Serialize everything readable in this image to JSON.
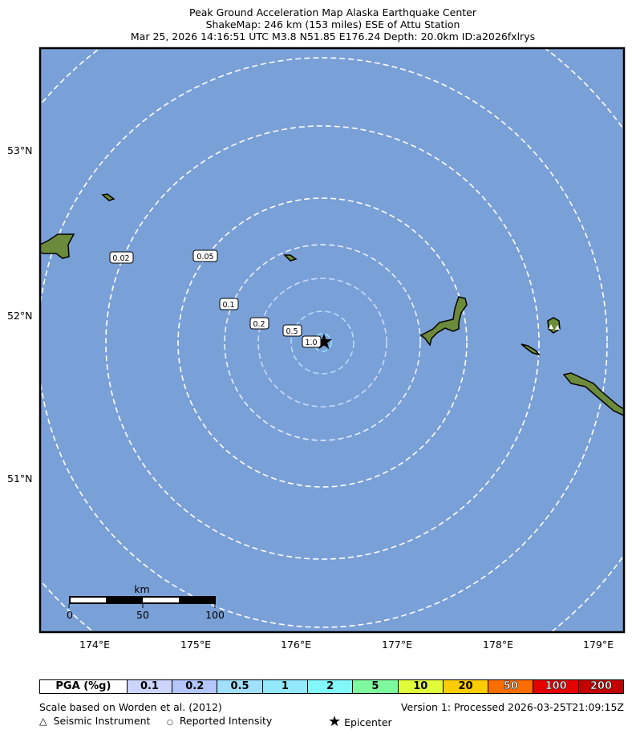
{
  "title": {
    "line1": "Peak Ground Acceleration Map Alaska Earthquake Center",
    "line2": "ShakeMap: 246 km (153 miles) ESE of Attu Station",
    "line3": "Mar 25, 2026 14:16:51 UTC M3.8 N51.85 E176.24 Depth: 20.0km ID:a2026fxlrys"
  },
  "map": {
    "ocean_color": "#7aa0d8",
    "land_color": "#6b8a3a",
    "lat_ticks": [
      "53°N",
      "52°N",
      "51°N"
    ],
    "lon_ticks": [
      "174°E",
      "175°E",
      "176°E",
      "177°E",
      "178°E",
      "179°E"
    ],
    "contour_labels": [
      "0.02",
      "0.05",
      "0.1",
      "0.2",
      "0.5",
      "1.0"
    ],
    "scalebar": {
      "unit": "km",
      "ticks": [
        "0",
        "50",
        "100"
      ]
    },
    "epicenter_icon": "star-icon",
    "station_icon": "triangle-icon"
  },
  "legend": {
    "header": "PGA (%g)",
    "bins": [
      {
        "label": "0.1",
        "color": "#ccd6fc"
      },
      {
        "label": "0.2",
        "color": "#b4c6fb"
      },
      {
        "label": "0.5",
        "color": "#a0e0fb"
      },
      {
        "label": "1",
        "color": "#91e9fb"
      },
      {
        "label": "2",
        "color": "#83f8fa"
      },
      {
        "label": "5",
        "color": "#7ef99e"
      },
      {
        "label": "10",
        "color": "#e1fc3a"
      },
      {
        "label": "20",
        "color": "#fccd00"
      },
      {
        "label": "50",
        "color": "#fc6d00"
      },
      {
        "label": "100",
        "color": "#e40000"
      },
      {
        "label": "200",
        "color": "#c30000"
      }
    ]
  },
  "footer": {
    "scale_note": "Scale based on Worden et al. (2012)",
    "version": "Version 1: Processed 2026-03-25T21:09:15Z",
    "seismic": "Seismic Instrument",
    "reported": "Reported Intensity",
    "epicenter": "Epicenter"
  }
}
